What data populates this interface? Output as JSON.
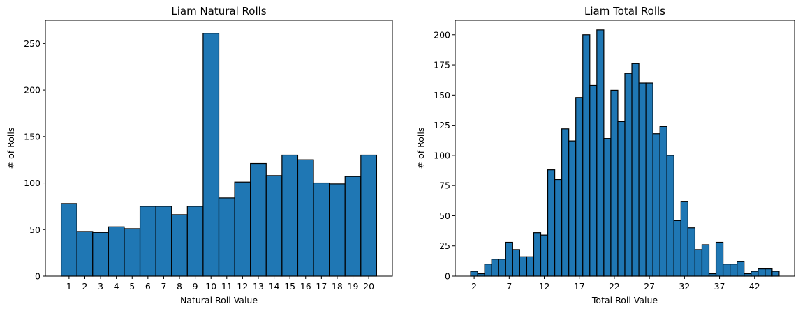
{
  "chart_data": [
    {
      "type": "bar",
      "title": "Liam Natural Rolls",
      "xlabel": "Natural Roll Value",
      "ylabel": "# of Rolls",
      "categories": [
        "1",
        "2",
        "3",
        "4",
        "5",
        "6",
        "7",
        "8",
        "9",
        "10",
        "11",
        "12",
        "13",
        "14",
        "15",
        "16",
        "17",
        "18",
        "19",
        "20"
      ],
      "xticks": [
        "1",
        "2",
        "3",
        "4",
        "5",
        "6",
        "7",
        "8",
        "9",
        "10",
        "11",
        "12",
        "13",
        "14",
        "15",
        "16",
        "17",
        "18",
        "19",
        "20"
      ],
      "values": [
        78,
        48,
        47,
        53,
        51,
        75,
        75,
        66,
        75,
        261,
        84,
        101,
        121,
        108,
        130,
        125,
        100,
        99,
        107,
        130
      ],
      "ylim": [
        0,
        275
      ],
      "yticks": [
        0,
        50,
        100,
        150,
        200,
        250
      ],
      "bar_color": "#1f77b4",
      "edge_color": "#000000",
      "grid": false
    },
    {
      "type": "bar",
      "title": "Liam Total Rolls",
      "xlabel": "Total Roll Value",
      "ylabel": "# of Rolls",
      "x": [
        2,
        3,
        4,
        5,
        6,
        7,
        8,
        9,
        10,
        11,
        12,
        13,
        14,
        15,
        16,
        17,
        18,
        19,
        20,
        21,
        22,
        23,
        24,
        25,
        26,
        27,
        28,
        29,
        30,
        31,
        32,
        33,
        34,
        35,
        36,
        37,
        38,
        39,
        40,
        41,
        42,
        43,
        44,
        45
      ],
      "values": [
        4,
        2,
        10,
        14,
        14,
        28,
        22,
        16,
        16,
        36,
        34,
        88,
        80,
        122,
        112,
        148,
        200,
        158,
        204,
        114,
        154,
        128,
        168,
        176,
        160,
        160,
        118,
        124,
        100,
        46,
        62,
        40,
        22,
        26,
        2,
        28,
        10,
        10,
        12,
        2,
        4,
        6,
        6,
        4
      ],
      "xticks": [
        2,
        7,
        12,
        17,
        22,
        27,
        32,
        37,
        42
      ],
      "ylim": [
        0,
        212
      ],
      "yticks": [
        0,
        25,
        50,
        75,
        100,
        125,
        150,
        175,
        200
      ],
      "bar_color": "#1f77b4",
      "edge_color": "#000000",
      "grid": false
    }
  ]
}
